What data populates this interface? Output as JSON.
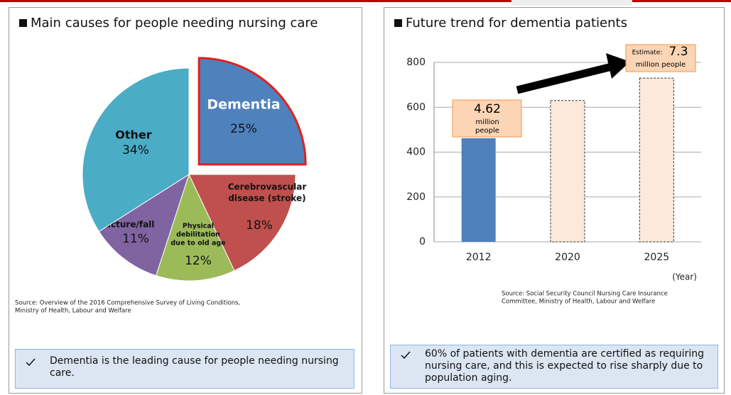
{
  "chart_data": [
    {
      "type": "pie",
      "title": "Main causes for people needing nursing care",
      "categories": [
        [
          "Dementia"
        ],
        [
          "Cerebrovascular",
          "disease (stroke)"
        ],
        [
          "Physical",
          "debilitation",
          "due to old age"
        ],
        [
          "Fracture/fall"
        ],
        [
          "Other"
        ]
      ],
      "values": [
        25,
        18,
        12,
        11,
        34
      ],
      "value_labels": [
        "25%",
        "18%",
        "12%",
        "11%",
        "34%"
      ],
      "colors": [
        "#4f81bd",
        "#c0504d",
        "#9bbb59",
        "#8064a2",
        "#4bacc6"
      ],
      "source": [
        "Source: Overview of the 2016 Comprehensive Survey of Living Conditions,",
        "Ministry of Health, Labour and Welfare"
      ],
      "note": "Dementia is the leading cause for people needing nursing care."
    },
    {
      "type": "bar",
      "title": "Future trend for dementia patients",
      "categories": [
        "2012",
        "2020",
        "2025"
      ],
      "values": [
        462,
        630,
        730
      ],
      "colors": [
        "#4f81bd",
        "#fde9d9",
        "#fde9d9"
      ],
      "bar_styles": [
        "solid",
        "dashed",
        "dashed"
      ],
      "ylim": [
        0,
        800
      ],
      "yticks": [
        0,
        200,
        400,
        600,
        800
      ],
      "grid": true,
      "xlabel": "(Year)",
      "annotations": [
        {
          "lines": [
            "4.62",
            "million",
            "people"
          ]
        },
        {
          "lines": [
            "Estimate:",
            "7.3",
            "million people"
          ]
        }
      ],
      "source": [
        "Source:  Social Security Council Nursing Care Insurance",
        "Committee, Ministry of Health, Labour and Welfare"
      ],
      "note": "60% of patients with dementia are certified as requiring nursing care, and this is expected to rise sharply due to population aging."
    }
  ]
}
